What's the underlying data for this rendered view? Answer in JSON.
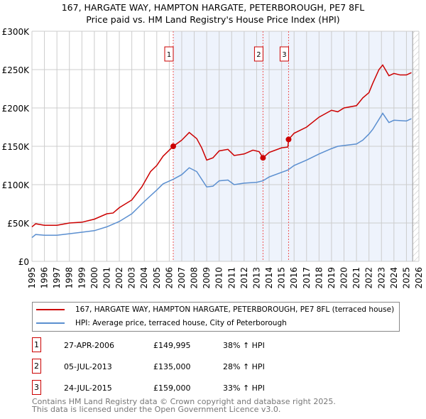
{
  "chart_data": {
    "type": "line",
    "title": "167, HARGATE WAY, HAMPTON HARGATE, PETERBOROUGH, PE7 8FL",
    "subtitle": "Price paid vs. HM Land Registry's House Price Index (HPI)",
    "xlim": [
      1995,
      2026
    ],
    "ylim": [
      0,
      300000
    ],
    "yticks": [
      {
        "v": 0,
        "label": "£0"
      },
      {
        "v": 50000,
        "label": "£50K"
      },
      {
        "v": 100000,
        "label": "£100K"
      },
      {
        "v": 150000,
        "label": "£150K"
      },
      {
        "v": 200000,
        "label": "£200K"
      },
      {
        "v": 250000,
        "label": "£250K"
      },
      {
        "v": 300000,
        "label": "£300K"
      }
    ],
    "xticks": [
      "1995",
      "1996",
      "1997",
      "1998",
      "1999",
      "2000",
      "2001",
      "2002",
      "2003",
      "2004",
      "2005",
      "2006",
      "2007",
      "2008",
      "2009",
      "2010",
      "2011",
      "2012",
      "2013",
      "2014",
      "2015",
      "2016",
      "2017",
      "2018",
      "2019",
      "2020",
      "2021",
      "2022",
      "2023",
      "2024",
      "2025",
      "2026"
    ],
    "grid": true,
    "series": [
      {
        "name": "167, HARGATE WAY, HAMPTON HARGATE, PETERBOROUGH, PE7 8FL (terraced house)",
        "color": "#cc0000",
        "x": [
          1995,
          1995.3,
          1996,
          1997,
          1998,
          1999,
          2000,
          2001,
          2001.5,
          2002,
          2003,
          2003.8,
          2004.5,
          2005,
          2005.5,
          2006.32,
          2007,
          2007.6,
          2008.2,
          2008.6,
          2009,
          2009.5,
          2010,
          2010.7,
          2011.2,
          2012,
          2012.7,
          2013.2,
          2013.51,
          2014,
          2015,
          2015.5,
          2015.56,
          2016,
          2017,
          2018,
          2019,
          2019.5,
          2020,
          2021,
          2021.5,
          2022,
          2022.3,
          2022.8,
          2023.1,
          2023.6,
          2024,
          2024.5,
          2025,
          2025.4
        ],
        "y": [
          45000,
          49000,
          47000,
          47000,
          50000,
          51000,
          55000,
          62000,
          63000,
          70000,
          80000,
          97000,
          117000,
          125000,
          137000,
          149995,
          158000,
          168000,
          160000,
          148000,
          132000,
          135000,
          144000,
          146000,
          138000,
          140000,
          145000,
          143000,
          135000,
          142000,
          148000,
          149000,
          159000,
          167000,
          175000,
          188000,
          197000,
          195000,
          200000,
          203000,
          213000,
          220000,
          232000,
          250000,
          256000,
          242000,
          245000,
          243000,
          243000,
          246000
        ]
      },
      {
        "name": "HPI: Average price, terraced house, City of Peterborough",
        "color": "#5b8fd0",
        "x": [
          1995,
          1995.3,
          1996,
          1997,
          1998,
          1999,
          2000,
          2001,
          2002,
          2003,
          2004,
          2005,
          2005.5,
          2006.32,
          2007,
          2007.6,
          2008.2,
          2009,
          2009.5,
          2010,
          2010.7,
          2011.2,
          2012,
          2013,
          2013.5,
          2014,
          2015,
          2015.5,
          2016,
          2017,
          2018,
          2019,
          2019.5,
          2020,
          2021,
          2021.5,
          2022,
          2022.3,
          2023.1,
          2023.6,
          2024,
          2025,
          2025.4
        ],
        "y": [
          31000,
          35000,
          34000,
          34000,
          36000,
          38000,
          40000,
          45000,
          52000,
          62000,
          78000,
          93000,
          101000,
          107000,
          113000,
          122000,
          117000,
          97000,
          98000,
          105000,
          106000,
          100000,
          102000,
          103000,
          105000,
          110000,
          116000,
          119000,
          125000,
          132000,
          140000,
          147000,
          150000,
          151000,
          153000,
          158000,
          166000,
          172000,
          193000,
          181000,
          184000,
          183000,
          186000
        ]
      }
    ],
    "sales": [
      {
        "label": "1",
        "x": 2006.32,
        "y": 149995,
        "date": "27-APR-2006",
        "price": "£149,995",
        "hpi": "38% ↑ HPI"
      },
      {
        "label": "2",
        "x": 2013.51,
        "y": 135000,
        "date": "05-JUL-2013",
        "price": "£135,000",
        "hpi": "28% ↑ HPI"
      },
      {
        "label": "3",
        "x": 2015.56,
        "y": 159000,
        "date": "24-JUL-2015",
        "price": "£159,000",
        "hpi": "33% ↑ HPI"
      }
    ],
    "shade_from": 2006.32,
    "hatch_from": 2025.5
  },
  "footer": [
    "Contains HM Land Registry data © Crown copyright and database right 2025.",
    "This data is licensed under the Open Government Licence v3.0."
  ]
}
